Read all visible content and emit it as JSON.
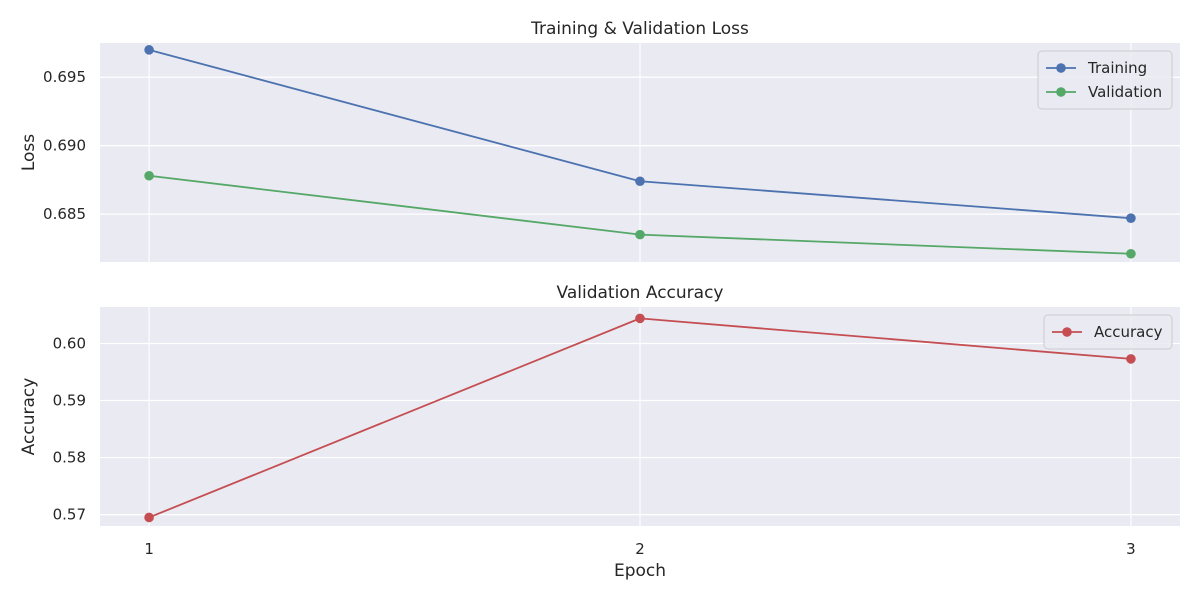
{
  "chart_data": [
    {
      "type": "line",
      "title": "Training & Validation Loss",
      "xlabel": "",
      "ylabel": "Loss",
      "x": [
        1,
        2,
        3
      ],
      "xlim": [
        0.9,
        3.1
      ],
      "ylim": [
        0.6815,
        0.6975
      ],
      "yticks": [
        0.685,
        0.69,
        0.695
      ],
      "ytick_labels": [
        "0.685",
        "0.690",
        "0.695"
      ],
      "series": [
        {
          "name": "Training",
          "color": "#4c72b0",
          "values": [
            0.697,
            0.6874,
            0.6847
          ]
        },
        {
          "name": "Validation",
          "color": "#55a868",
          "values": [
            0.6878,
            0.6835,
            0.6821
          ]
        }
      ],
      "legend": "top-right",
      "grid": true
    },
    {
      "type": "line",
      "title": "Validation Accuracy",
      "xlabel": "Epoch",
      "ylabel": "Accuracy",
      "x": [
        1,
        2,
        3
      ],
      "xlim": [
        0.9,
        3.1
      ],
      "xticks": [
        1,
        2,
        3
      ],
      "xtick_labels": [
        "1",
        "2",
        "3"
      ],
      "ylim": [
        0.568,
        0.6064
      ],
      "yticks": [
        0.57,
        0.58,
        0.59,
        0.6
      ],
      "ytick_labels": [
        "0.57",
        "0.58",
        "0.59",
        "0.60"
      ],
      "series": [
        {
          "name": "Accuracy",
          "color": "#c44e52",
          "values": [
            0.5695,
            0.6044,
            0.5973
          ]
        }
      ],
      "legend": "top-right",
      "grid": true
    }
  ]
}
